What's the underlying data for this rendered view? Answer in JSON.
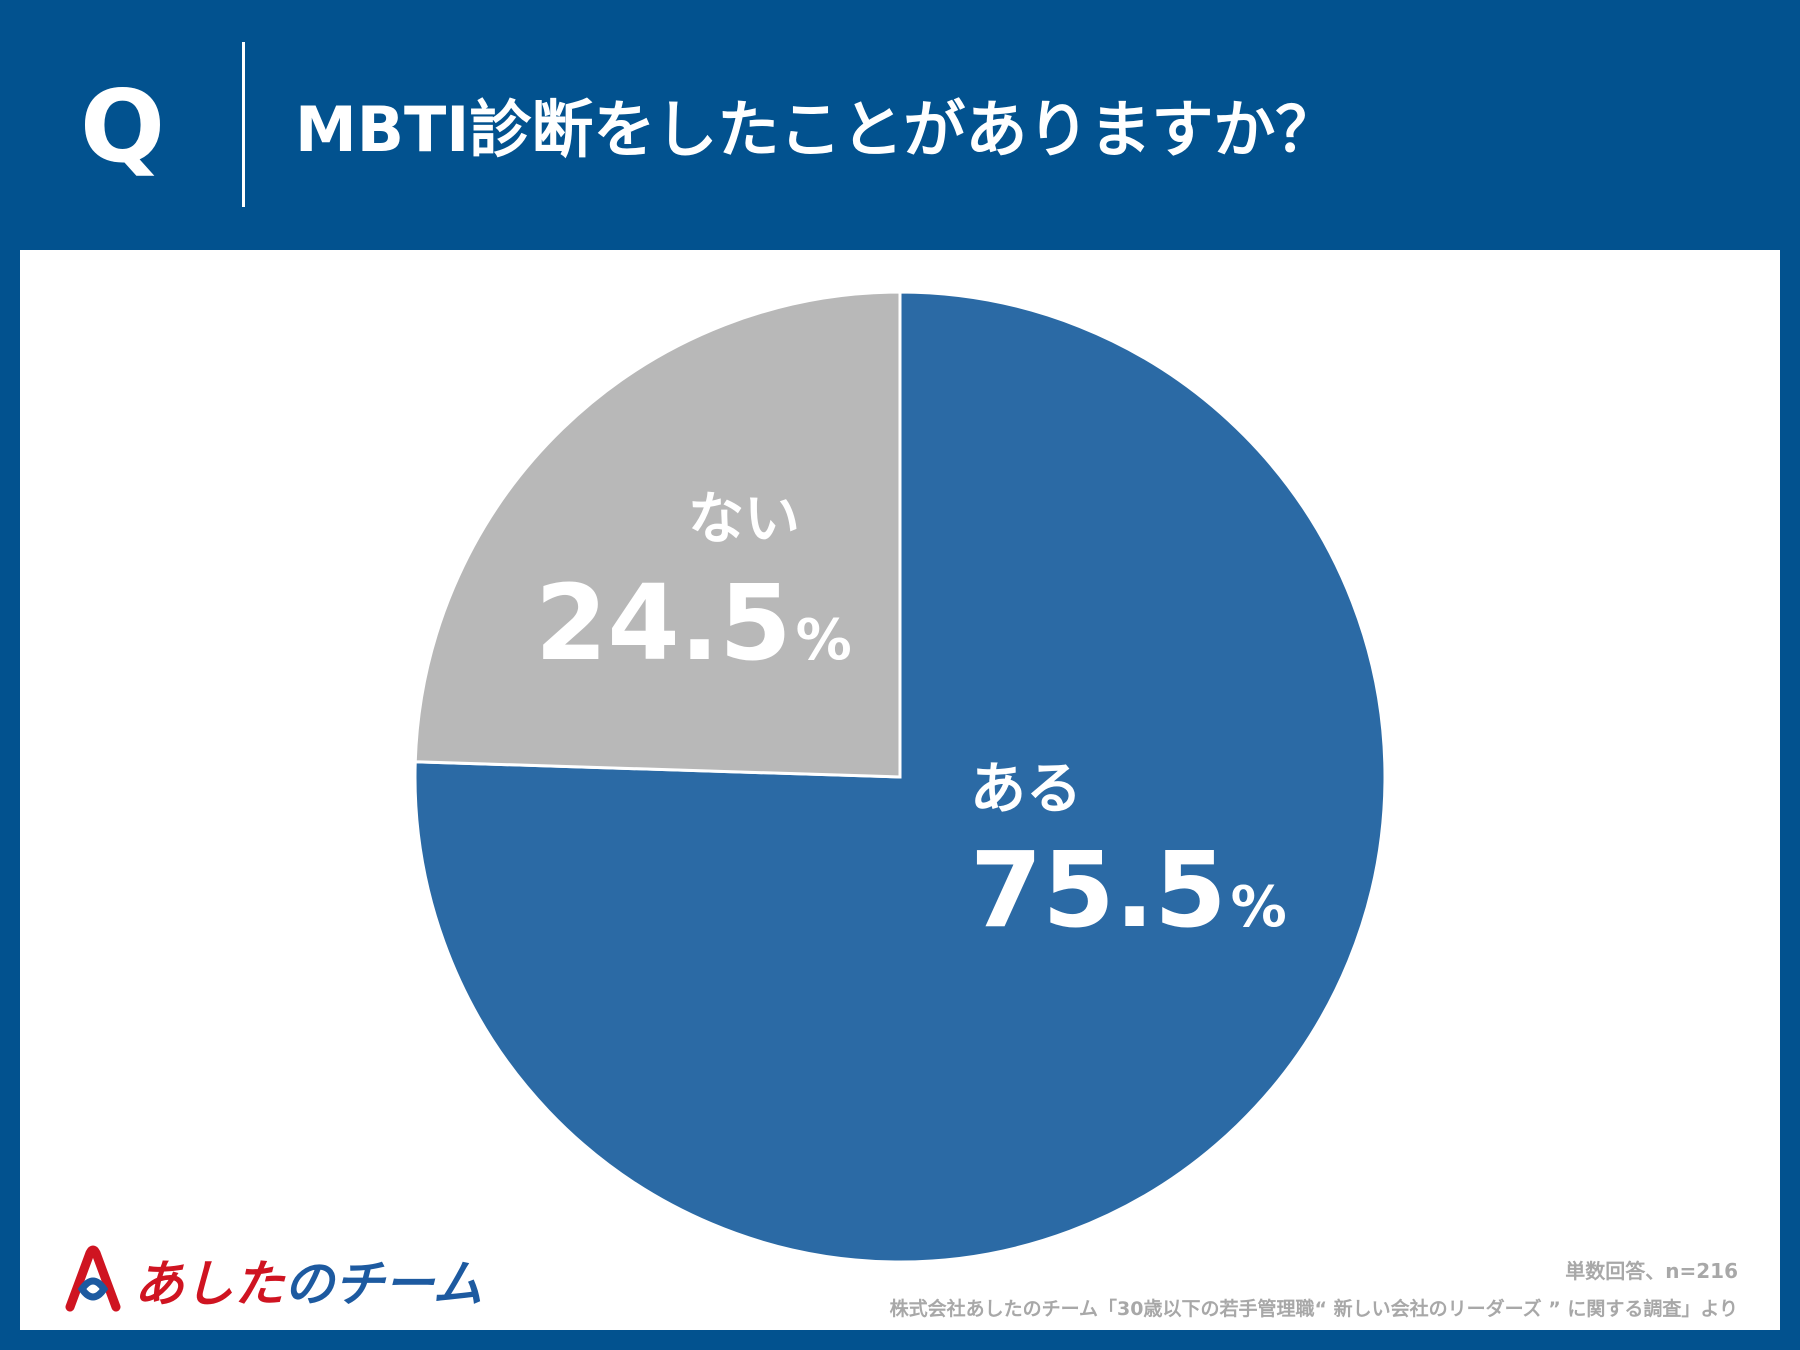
{
  "header": {
    "q_label": "Q",
    "question": "MBTI診断をしたことがありますか？"
  },
  "chart_data": {
    "type": "pie",
    "title": "",
    "slices": [
      {
        "label": "ある",
        "value": 75.5,
        "value_label": "75.5",
        "unit": "%",
        "color": "#2b6aa5"
      },
      {
        "label": "ない",
        "value": 24.5,
        "value_label": "24.5",
        "unit": "%",
        "color": "#b8b8b8"
      }
    ],
    "start": "top",
    "direction": "clockwise",
    "slice_border_color": "#ffffff"
  },
  "footer": {
    "logo_text_1": "あした",
    "logo_text_2": "のチーム",
    "logo_colors": {
      "red": "#cf1421",
      "blue": "#1d5aa0"
    },
    "sample_note": "単数回答、n=216",
    "source_note": "株式会社あしたのチーム「30歳以下の若手管理職“ 新しい会社のリーダーズ ” に関する調査」より"
  }
}
